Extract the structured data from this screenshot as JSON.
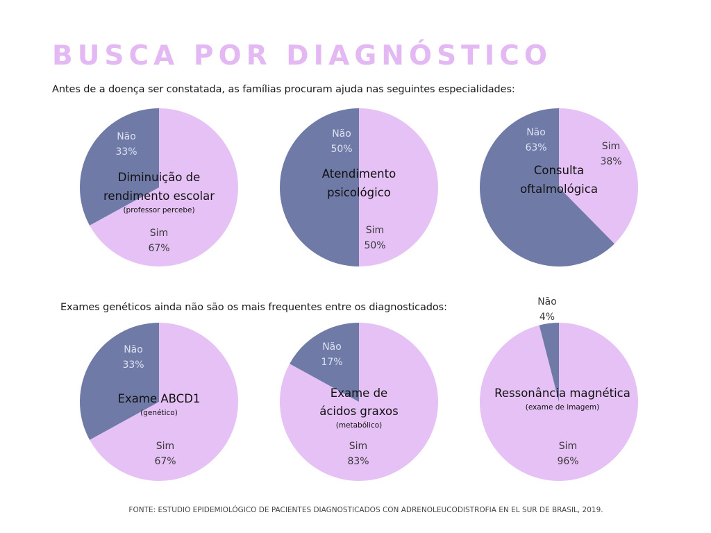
{
  "title": "BUSCA POR DIAGNÓSTICO",
  "intro_1": "Antes de a doença ser constatada, as famílias procuram ajuda nas seguintes especialidades:",
  "intro_2": "Exames genéticos ainda não são os mais frequentes entre os diagnosticados:",
  "source": "FONTE: ESTUDIO EPIDEMIOLÓGICO DE PACIENTES DIAGNOSTICADOS CON ADRENOLEUCODISTROFIA EN EL SUR DE BRASIL, 2019.",
  "colors": {
    "sim": "#e6c1f5",
    "nao": "#6f7aa7",
    "title": "#e3b8f3"
  },
  "chart_data": [
    {
      "type": "pie",
      "title": [
        "Diminuição de",
        "rendimento escolar"
      ],
      "subtitle": "(professor percebe)",
      "slices": [
        {
          "name": "Sim",
          "value": 67,
          "label": "67%"
        },
        {
          "name": "Não",
          "value": 33,
          "label": "33%"
        }
      ]
    },
    {
      "type": "pie",
      "title": [
        "Atendimento",
        "psicológico"
      ],
      "subtitle": "",
      "slices": [
        {
          "name": "Sim",
          "value": 50,
          "label": "50%"
        },
        {
          "name": "Não",
          "value": 50,
          "label": "50%"
        }
      ]
    },
    {
      "type": "pie",
      "title": [
        "Consulta",
        "oftalmológica"
      ],
      "subtitle": "",
      "slices": [
        {
          "name": "Sim",
          "value": 38,
          "label": "38%"
        },
        {
          "name": "Não",
          "value": 63,
          "label": "63%"
        }
      ]
    },
    {
      "type": "pie",
      "title": [
        "Exame ABCD1"
      ],
      "subtitle": "(genético)",
      "slices": [
        {
          "name": "Sim",
          "value": 67,
          "label": "67%"
        },
        {
          "name": "Não",
          "value": 33,
          "label": "33%"
        }
      ]
    },
    {
      "type": "pie",
      "title": [
        "Exame de",
        "ácidos graxos"
      ],
      "subtitle": "(metabólico)",
      "slices": [
        {
          "name": "Sim",
          "value": 83,
          "label": "83%"
        },
        {
          "name": "Não",
          "value": 17,
          "label": "17%"
        }
      ]
    },
    {
      "type": "pie",
      "title": [
        "Ressonância magnética"
      ],
      "subtitle": "(exame de imagem)",
      "slices": [
        {
          "name": "Sim",
          "value": 96,
          "label": "96%"
        },
        {
          "name": "Não",
          "value": 4,
          "label": "4%"
        }
      ]
    }
  ]
}
